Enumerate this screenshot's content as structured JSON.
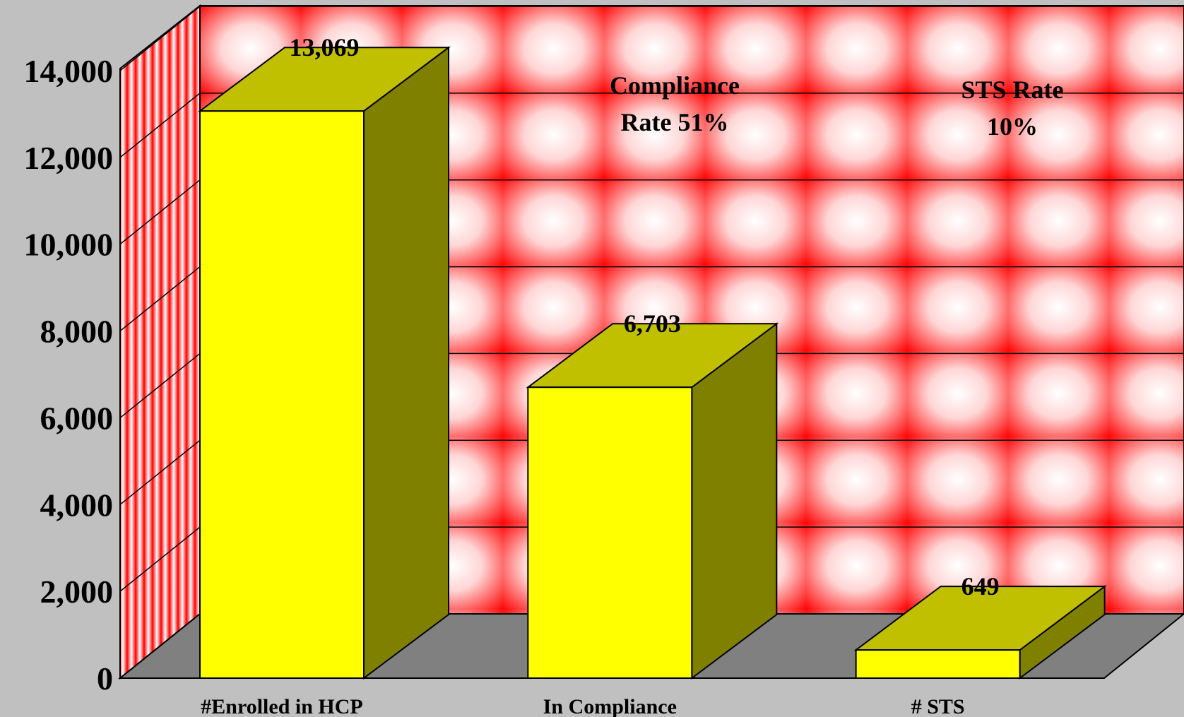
{
  "chart_data": {
    "type": "bar",
    "categories": [
      "#Enrolled in HCP",
      "In Compliance",
      "# STS"
    ],
    "values": [
      13069,
      6703,
      649
    ],
    "value_labels": [
      "13,069",
      "6,703",
      "649"
    ],
    "y_ticks": [
      "0",
      "2,000",
      "4,000",
      "6,000",
      "8,000",
      "10,000",
      "12,000",
      "14,000"
    ],
    "ylim": [
      0,
      14000
    ],
    "grid": true,
    "annotations": [
      {
        "lines": [
          "Compliance",
          "Rate 51%"
        ]
      },
      {
        "lines": [
          "STS Rate",
          "10%"
        ]
      }
    ],
    "colors": {
      "background": "#c0c0c0",
      "floor": "#808080",
      "wall": "#ff0000",
      "bar_front": "#ffff00",
      "bar_top": "#c0c000",
      "bar_side": "#808000"
    }
  }
}
